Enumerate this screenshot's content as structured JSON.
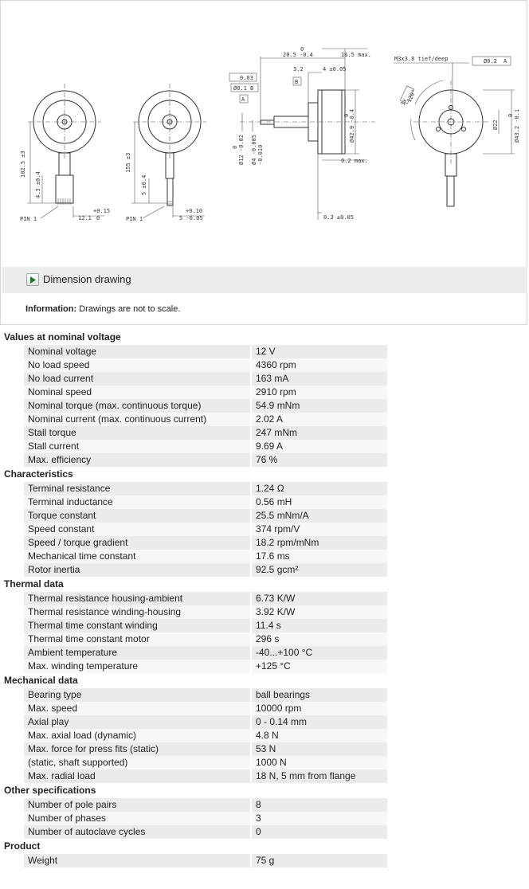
{
  "drawing": {
    "toggle_label": "Dimension drawing",
    "info_label": "Information:",
    "info_text": "Drawings are not to scale.",
    "dims": {
      "d1": "102.5 ±3",
      "d2": "4.3 ±0.4",
      "d3": "12.1",
      "d3tol": "+0.15",
      "d3tol2": "0",
      "pin1": "PIN 1",
      "d4": "155 ±3",
      "d5": "5 ±0.4",
      "d6": "5 -0.05",
      "d6tol": "+0.10",
      "pin2": "PIN 1",
      "s1": "0",
      "s2": "20.5 -0.4",
      "s3": "16.5 max.",
      "s4": "3.2",
      "s5": "4 ±0.05",
      "s6": "0.03",
      "s7": "Ø0.1",
      "s8": "B",
      "s9": "A",
      "s10": "B",
      "s11": "Ø42.9 -0.4",
      "s12": "0",
      "s13": "0",
      "s14": "Ø12 -0.02",
      "s15": "Ø4 -0.005",
      "s16": "-0.010",
      "s17": "0.2 max.",
      "s18": "0.3 ±0.05",
      "f1": "M3x3.8 tief/deep",
      "f2": "Ø0.2",
      "f3": "A",
      "f4": "3x",
      "f5": "120°",
      "f6": "Ø22",
      "f7": "Ø43.2 -0.1",
      "f8": "0"
    }
  },
  "groups": [
    {
      "title": "Values at nominal voltage",
      "rows": [
        {
          "label": "Nominal voltage",
          "value": "12 V"
        },
        {
          "label": "No load speed",
          "value": "4360 rpm"
        },
        {
          "label": "No load current",
          "value": "163 mA"
        },
        {
          "label": "Nominal speed",
          "value": "2910 rpm"
        },
        {
          "label": "Nominal torque (max. continuous torque)",
          "value": "54.9 mNm"
        },
        {
          "label": "Nominal current (max. continuous current)",
          "value": "2.02 A"
        },
        {
          "label": "Stall torque",
          "value": "247 mNm"
        },
        {
          "label": "Stall current",
          "value": "9.69 A"
        },
        {
          "label": "Max. efficiency",
          "value": "76 %"
        }
      ]
    },
    {
      "title": "Characteristics",
      "rows": [
        {
          "label": "Terminal resistance",
          "value": "1.24 Ω"
        },
        {
          "label": "Terminal inductance",
          "value": "0.56 mH"
        },
        {
          "label": "Torque constant",
          "value": "25.5 mNm/A"
        },
        {
          "label": "Speed constant",
          "value": "374 rpm/V"
        },
        {
          "label": "Speed / torque gradient",
          "value": "18.2 rpm/mNm"
        },
        {
          "label": "Mechanical time constant",
          "value": "17.6 ms"
        },
        {
          "label": "Rotor inertia",
          "value": "92.5 gcm²"
        }
      ]
    },
    {
      "title": "Thermal data",
      "rows": [
        {
          "label": "Thermal resistance housing-ambient",
          "value": "6.73 K/W"
        },
        {
          "label": "Thermal resistance winding-housing",
          "value": "3.92 K/W"
        },
        {
          "label": "Thermal time constant winding",
          "value": "11.4 s"
        },
        {
          "label": "Thermal time constant motor",
          "value": "296 s"
        },
        {
          "label": "Ambient temperature",
          "value": "-40...+100 °C"
        },
        {
          "label": "Max. winding temperature",
          "value": "+125 °C"
        }
      ]
    },
    {
      "title": "Mechanical data",
      "rows": [
        {
          "label": "Bearing type",
          "value": "ball bearings"
        },
        {
          "label": "Max. speed",
          "value": "10000 rpm"
        },
        {
          "label": "Axial play",
          "value": "0 - 0.14 mm"
        },
        {
          "label": "Max. axial load (dynamic)",
          "value": "4.8 N"
        },
        {
          "label": "Max. force for press fits (static)",
          "value": "53 N"
        },
        {
          "label": "(static, shaft supported)",
          "value": "1000 N"
        },
        {
          "label": "Max. radial load",
          "value": "18 N, 5 mm from flange"
        }
      ]
    },
    {
      "title": "Other specifications",
      "rows": [
        {
          "label": "Number of pole pairs",
          "value": "8"
        },
        {
          "label": "Number of phases",
          "value": "3"
        },
        {
          "label": "Number of autoclave cycles",
          "value": "0"
        }
      ]
    },
    {
      "title": "Product",
      "rows": [
        {
          "label": "Weight",
          "value": "75 g"
        }
      ]
    }
  ]
}
